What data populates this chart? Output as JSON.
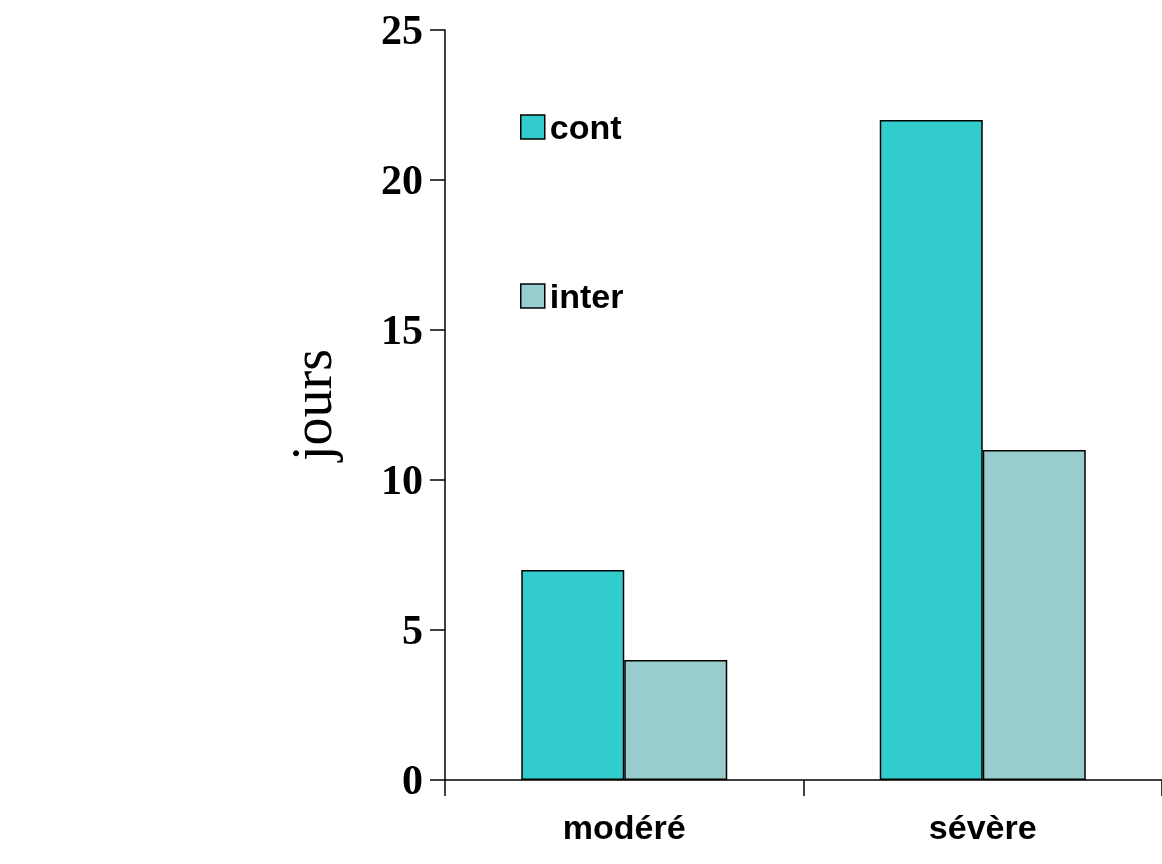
{
  "chart_data": {
    "type": "bar",
    "ylabel": "jours",
    "categories": [
      "modéré",
      "sévère"
    ],
    "series": [
      {
        "name": "cont",
        "color": "#33cccc",
        "values": [
          7,
          22
        ]
      },
      {
        "name": "inter",
        "color": "#99cccc",
        "values": [
          4,
          11
        ]
      }
    ],
    "ylim": [
      0,
      25
    ],
    "yticks": [
      0,
      5,
      10,
      15,
      20,
      25
    ],
    "legend": "top left"
  }
}
